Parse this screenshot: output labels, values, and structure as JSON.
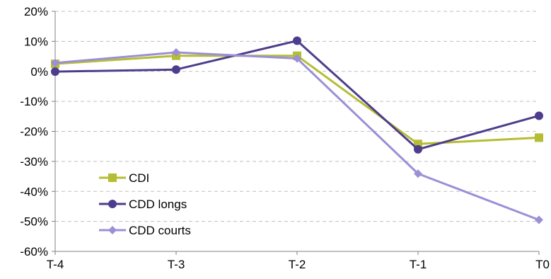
{
  "chart_data": {
    "type": "line",
    "title": "",
    "xlabel": "",
    "ylabel": "",
    "categories": [
      "T-4",
      "T-3",
      "T-2",
      "T-1",
      "T0"
    ],
    "y_tick_labels": [
      "20%",
      "10%",
      "0%",
      "-10%",
      "-20%",
      "-30%",
      "-40%",
      "-50%",
      "-60%"
    ],
    "y_tick_values": [
      20,
      10,
      0,
      -10,
      -20,
      -30,
      -40,
      -50,
      -60
    ],
    "ylim": [
      -60,
      20
    ],
    "y_unit": "%",
    "grid": "horizontal dashed",
    "legend_position": "bottom-left inside",
    "series": [
      {
        "name": "CDI",
        "marker": "square",
        "color": "#b5bd35",
        "values": [
          2.5,
          5.2,
          5.2,
          -24.2,
          -22.1
        ]
      },
      {
        "name": "CDD longs",
        "marker": "circle",
        "color": "#4e3d8c",
        "values": [
          -0.1,
          0.6,
          10.2,
          -26.0,
          -14.8
        ]
      },
      {
        "name": "CDD courts",
        "marker": "diamond",
        "color": "#9b8fd6",
        "values": [
          2.8,
          6.3,
          4.3,
          -34.1,
          -49.5
        ]
      }
    ]
  }
}
